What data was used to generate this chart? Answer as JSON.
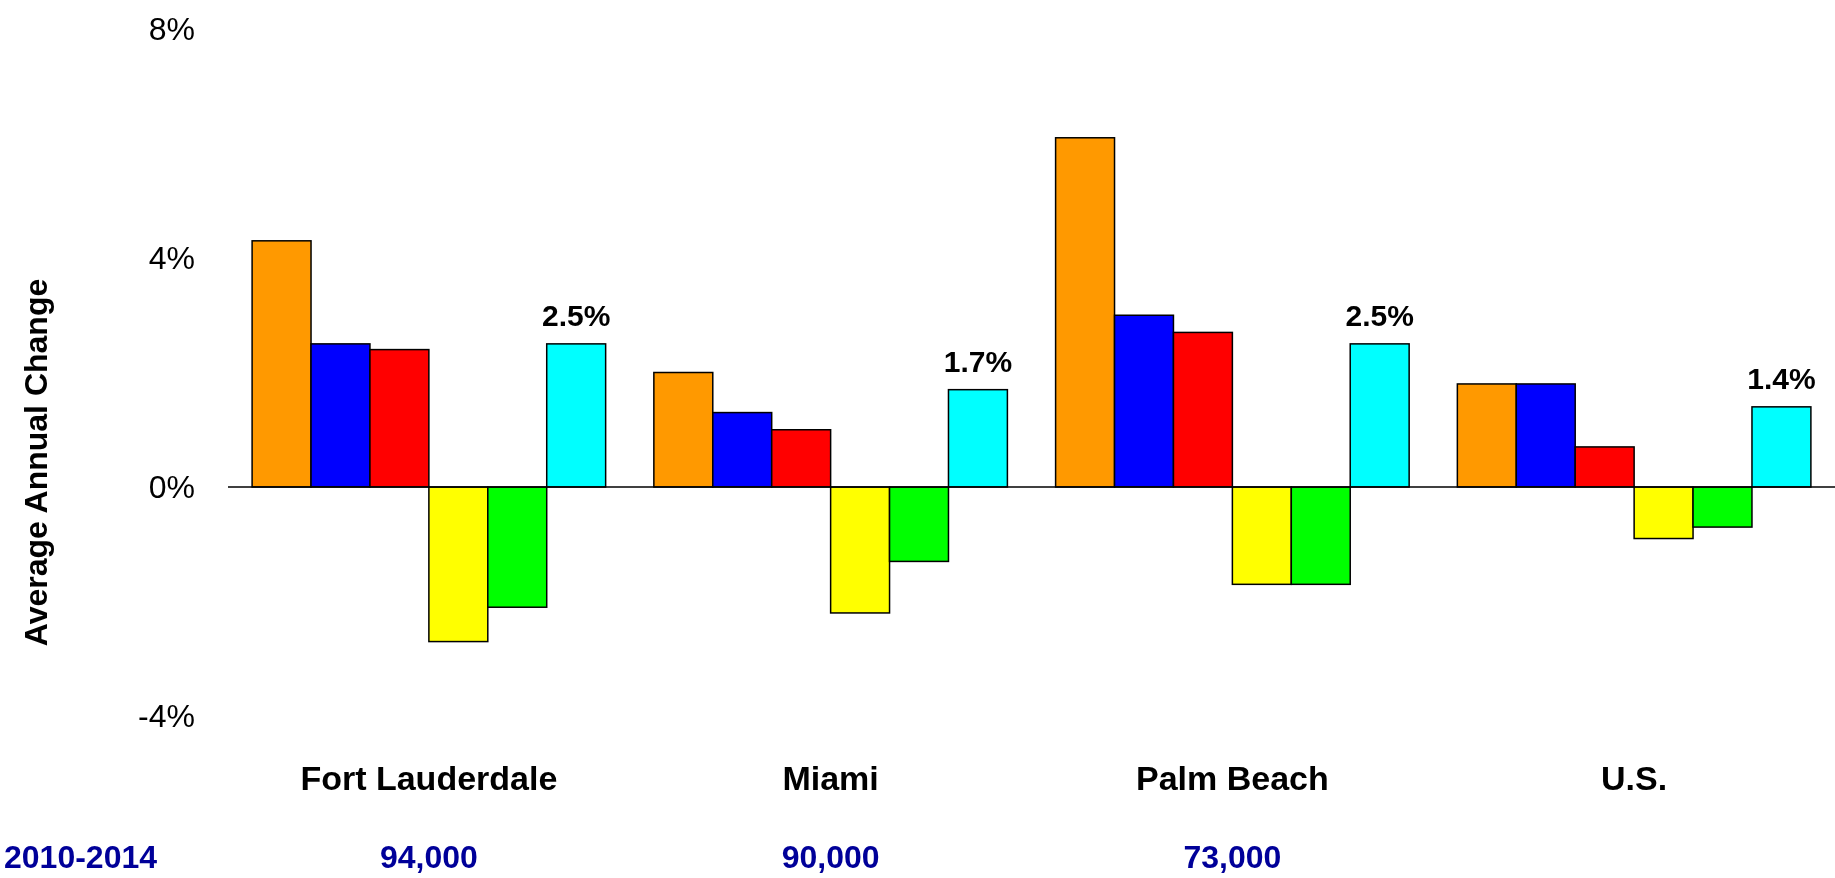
{
  "chart_data": {
    "type": "bar",
    "ylabel": "Average Annual Change",
    "categories": [
      "Fort Lauderdale",
      "Miami",
      "Palm Beach",
      "U.S."
    ],
    "series": [
      {
        "color": "#ff9900",
        "values": [
          4.3,
          2.0,
          6.1,
          1.8
        ]
      },
      {
        "color": "#0000ff",
        "values": [
          2.5,
          1.3,
          3.0,
          1.8
        ]
      },
      {
        "color": "#ff0000",
        "values": [
          2.4,
          1.0,
          2.7,
          0.7
        ]
      },
      {
        "color": "#ffff00",
        "values": [
          -2.7,
          -2.2,
          -1.7,
          -0.9
        ]
      },
      {
        "color": "#00ff00",
        "values": [
          -2.1,
          -1.3,
          -1.7,
          -0.7
        ]
      },
      {
        "color": "#00ffff",
        "values": [
          2.5,
          1.7,
          2.5,
          1.4
        ],
        "value_labels": [
          "2.5%",
          "1.7%",
          "2.5%",
          "1.4%"
        ]
      }
    ],
    "ylim": [
      -4,
      8
    ],
    "yticks": [
      {
        "value": -4,
        "label": "-4%"
      },
      {
        "value": 0,
        "label": "0%"
      },
      {
        "value": 4,
        "label": "4%"
      },
      {
        "value": 8,
        "label": "8%"
      }
    ],
    "annotations": [
      "2010-2014",
      "94,000",
      "90,000",
      "73,000"
    ]
  }
}
